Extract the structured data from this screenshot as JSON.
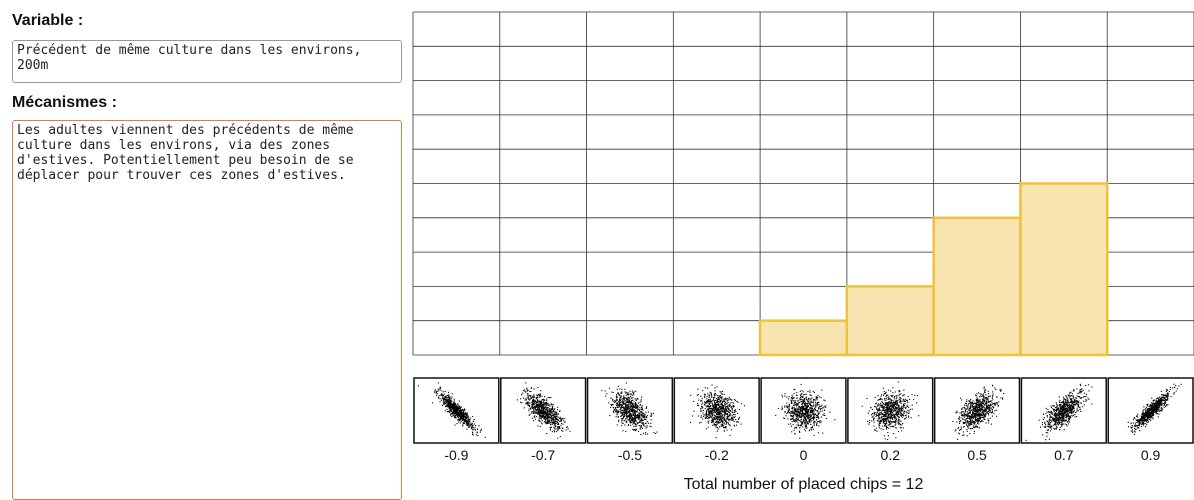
{
  "form": {
    "variable_label": "Variable :",
    "variable_text": "Précédent de même culture dans les environs, 200m",
    "mechanisms_label": "Mécanismes :",
    "mechanisms_text": "Les adultes viennent des précédents de même culture dans les environs, via des zones d'estives. Potentiellement peu besoin de se déplacer pour trouver ces zones d'estives."
  },
  "chart_data": {
    "type": "bar",
    "categories": [
      "-0.9",
      "-0.7",
      "-0.5",
      "-0.2",
      "0",
      "0.2",
      "0.5",
      "0.7",
      "0.9"
    ],
    "values": [
      0,
      0,
      0,
      0,
      1,
      2,
      4,
      5,
      0
    ],
    "color": "#f0c23c",
    "fill": "#f7e4b0",
    "ylim": [
      0,
      10
    ],
    "yticks": [
      0,
      1,
      2,
      3,
      4,
      5,
      6,
      7,
      8,
      9,
      10
    ],
    "grid": true,
    "footer": "Total number of placed chips = 12"
  }
}
